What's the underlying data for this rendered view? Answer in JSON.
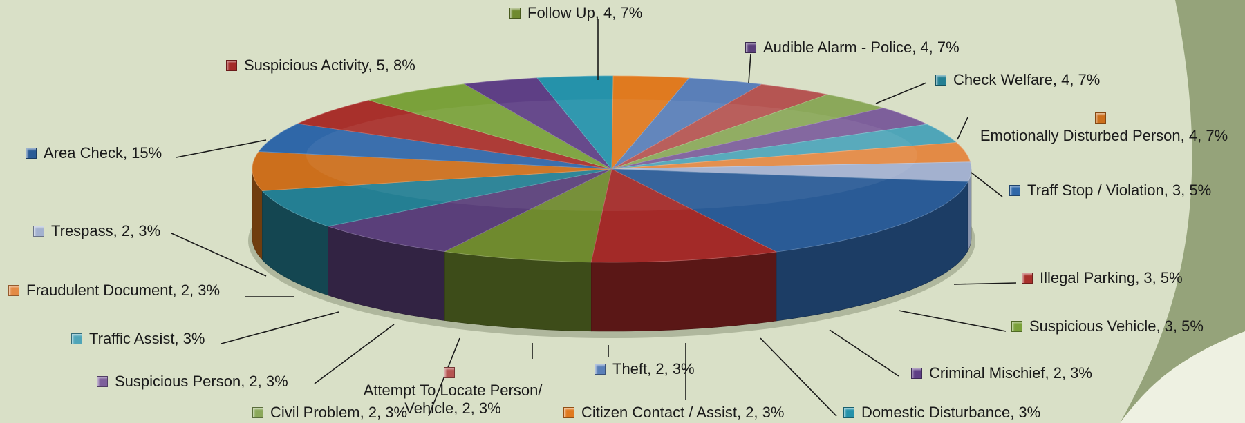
{
  "chart_data": {
    "type": "pie",
    "style": "3d",
    "slices": [
      {
        "label": "Follow Up",
        "text": "Follow Up, 4, 7%",
        "value": 4,
        "percent": 7,
        "color": "#6f8a2e"
      },
      {
        "label": "Audible Alarm - Police",
        "text": "Audible Alarm - Police, 4, 7%",
        "value": 4,
        "percent": 7,
        "color": "#5a3f7a"
      },
      {
        "label": "Check Welfare",
        "text": "Check Welfare, 4, 7%",
        "value": 4,
        "percent": 7,
        "color": "#247f93"
      },
      {
        "label": "Emotionally Disturbed Person",
        "text": "Emotionally Disturbed Person, 4, 7%",
        "value": 4,
        "percent": 7,
        "color": "#cc6f1c"
      },
      {
        "label": "Traff Stop / Violation",
        "text": "Traff Stop / Violation, 3, 5%",
        "value": 3,
        "percent": 5,
        "color": "#2f67a8"
      },
      {
        "label": "Illegal Parking",
        "text": "Illegal Parking, 3, 5%",
        "value": 3,
        "percent": 5,
        "color": "#a8302b"
      },
      {
        "label": "Suspicious Vehicle",
        "text": "Suspicious Vehicle, 3, 5%",
        "value": 3,
        "percent": 5,
        "color": "#7aa13a"
      },
      {
        "label": "Criminal Mischief",
        "text": "Criminal Mischief, 2, 3%",
        "value": 2,
        "percent": 3,
        "color": "#5e3f85"
      },
      {
        "label": "Domestic Disturbance",
        "text": "Domestic Disturbance, 3%",
        "value": 2,
        "percent": 3,
        "color": "#2592aa"
      },
      {
        "label": "Citizen Contact / Assist",
        "text": "Citizen Contact / Assist, 2, 3%",
        "value": 2,
        "percent": 3,
        "color": "#e07a1f"
      },
      {
        "label": "Theft",
        "text": "Theft, 2, 3%",
        "value": 2,
        "percent": 3,
        "color": "#5a7fb8"
      },
      {
        "label": "Attempt To Locate Person/ Vehicle",
        "text": "Attempt To Locate Person/ Vehicle, 2, 3%",
        "value": 2,
        "percent": 3,
        "color": "#b55552"
      },
      {
        "label": "Civil Problem",
        "text": "Civil Problem, 2, 3%",
        "value": 2,
        "percent": 3,
        "color": "#8ba85a"
      },
      {
        "label": "Suspicious Person",
        "text": "Suspicious Person, 2, 3%",
        "value": 2,
        "percent": 3,
        "color": "#7d5f9b"
      },
      {
        "label": "Traffic Assist",
        "text": "Traffic Assist, 3%",
        "value": 2,
        "percent": 3,
        "color": "#4fa5b8"
      },
      {
        "label": "Fraudulent Document",
        "text": "Fraudulent Document, 2, 3%",
        "value": 2,
        "percent": 3,
        "color": "#e38a45"
      },
      {
        "label": "Trespass",
        "text": "Trespass, 2, 3%",
        "value": 2,
        "percent": 3,
        "color": "#a3b1cf"
      },
      {
        "label": "Area Check",
        "text": "Area Check, 15%",
        "value": 9,
        "percent": 15,
        "color": "#2a5b96"
      },
      {
        "label": "Suspicious Activity",
        "text": "Suspicious Activity, 5, 8%",
        "value": 5,
        "percent": 8,
        "color": "#a32a28"
      }
    ]
  },
  "colors": {
    "background": "#d9e0c7",
    "swoosh_light": "#eef1e2",
    "swoosh_dark": "#95a37a"
  }
}
